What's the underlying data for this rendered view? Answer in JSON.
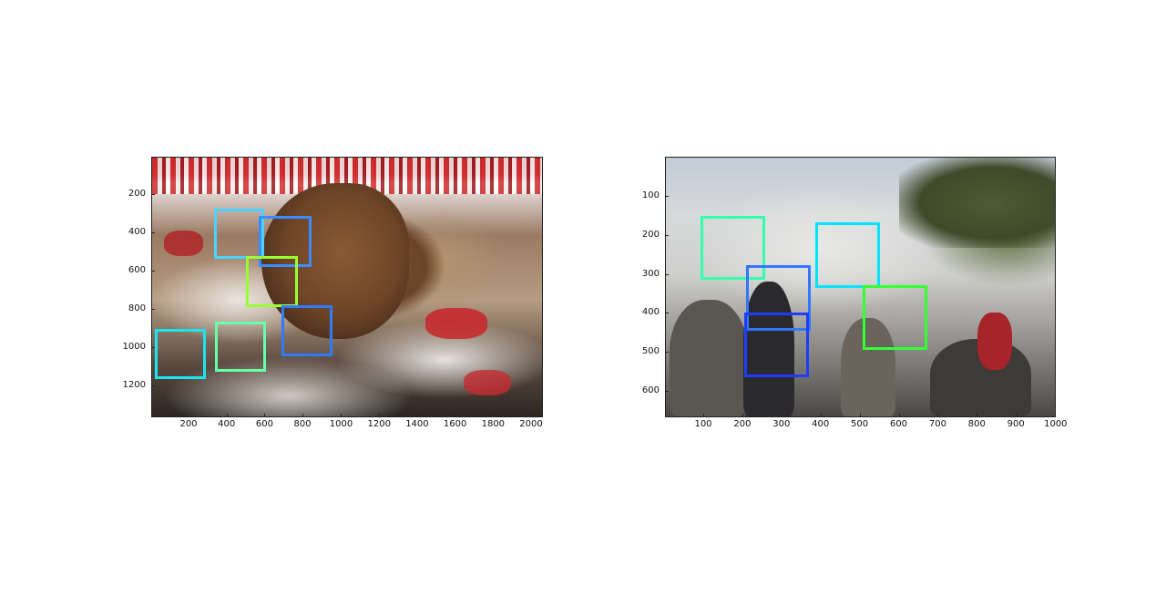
{
  "figure": {
    "panels": [
      {
        "name": "left",
        "image": "crowd-bull-photo",
        "x_ticks": [
          "200",
          "400",
          "600",
          "800",
          "1000",
          "1200",
          "1400",
          "1600",
          "1800",
          "2000"
        ],
        "y_ticks": [
          "200",
          "400",
          "600",
          "800",
          "1000",
          "1200"
        ],
        "box_colors": [
          "#00ffff",
          "#4dd2ff",
          "#3a8cff",
          "#99ff33",
          "#2e7bff",
          "#66ffaa",
          "#19e6f0"
        ]
      },
      {
        "name": "right",
        "image": "riot-street-photo",
        "x_ticks": [
          "100",
          "200",
          "300",
          "400",
          "500",
          "600",
          "700",
          "800",
          "900",
          "1000"
        ],
        "y_ticks": [
          "100",
          "200",
          "300",
          "400",
          "500",
          "600"
        ],
        "box_colors": [
          "#33ffaa",
          "#00e5ff",
          "#3377ff",
          "#1e3cff",
          "#33ff33"
        ]
      }
    ]
  }
}
